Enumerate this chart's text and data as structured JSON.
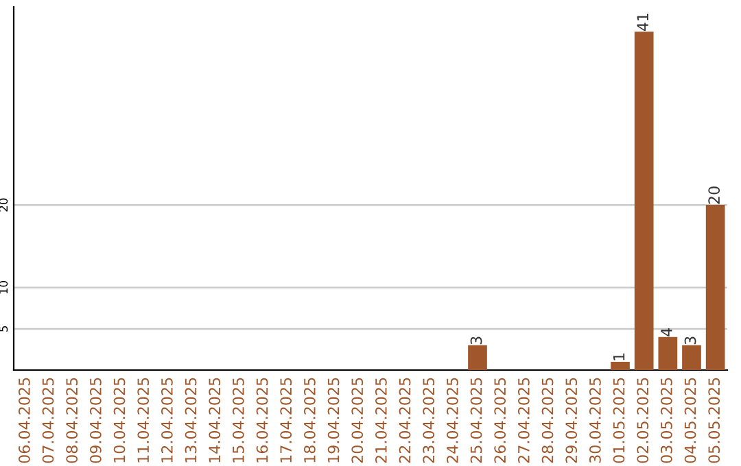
{
  "chart_data": {
    "type": "bar",
    "categories": [
      "06.04.2025",
      "07.04.2025",
      "08.04.2025",
      "09.04.2025",
      "10.04.2025",
      "11.04.2025",
      "12.04.2025",
      "13.04.2025",
      "14.04.2025",
      "15.04.2025",
      "16.04.2025",
      "17.04.2025",
      "18.04.2025",
      "19.04.2025",
      "20.04.2025",
      "21.04.2025",
      "22.04.2025",
      "23.04.2025",
      "24.04.2025",
      "25.04.2025",
      "26.04.2025",
      "27.04.2025",
      "28.04.2025",
      "29.04.2025",
      "30.04.2025",
      "01.05.2025",
      "02.05.2025",
      "03.05.2025",
      "04.05.2025",
      "05.05.2025"
    ],
    "values": [
      0,
      0,
      0,
      0,
      0,
      0,
      0,
      0,
      0,
      0,
      0,
      0,
      0,
      0,
      0,
      0,
      0,
      0,
      0,
      3,
      0,
      0,
      0,
      0,
      0,
      1,
      41,
      4,
      3,
      20
    ],
    "value_labels": [
      null,
      null,
      null,
      null,
      null,
      null,
      null,
      null,
      null,
      null,
      null,
      null,
      null,
      null,
      null,
      null,
      null,
      null,
      null,
      "3",
      null,
      null,
      null,
      null,
      null,
      "1",
      "41",
      "4",
      "3",
      "20"
    ],
    "color": "#a0572b",
    "ylim": [
      0,
      44
    ],
    "yticks": [
      5,
      10,
      20
    ],
    "grid": "y"
  }
}
